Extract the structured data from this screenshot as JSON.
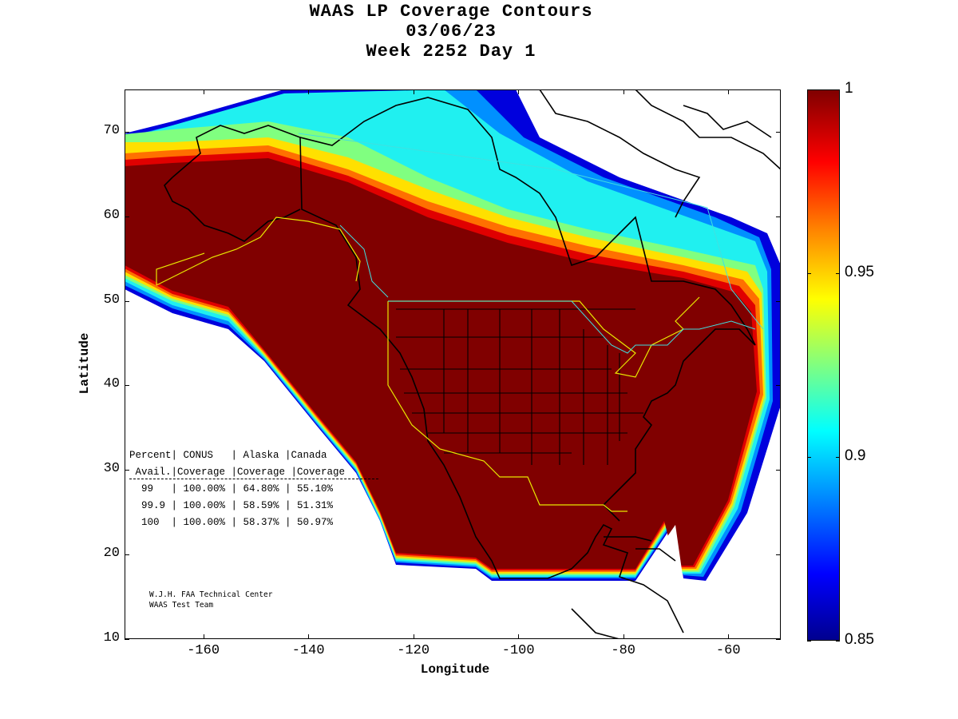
{
  "title": {
    "line1": "WAAS LP Coverage Contours",
    "line2": "03/06/23",
    "line3": "Week 2252 Day 1"
  },
  "axes": {
    "xlabel": "Longitude",
    "ylabel": "Latitude",
    "xlim": [
      -175,
      -50
    ],
    "ylim": [
      10,
      75
    ],
    "xticks": [
      "-160",
      "-140",
      "-120",
      "-100",
      "-80",
      "-60"
    ],
    "xtick_values": [
      -160,
      -140,
      -120,
      -100,
      -80,
      -60
    ],
    "yticks": [
      "10",
      "20",
      "30",
      "40",
      "50",
      "60",
      "70"
    ],
    "ytick_values": [
      10,
      20,
      30,
      40,
      50,
      60,
      70
    ]
  },
  "colorbar": {
    "min": 0.85,
    "max": 1,
    "ticks": [
      "0.85",
      "0.9",
      "0.95",
      "1"
    ],
    "tick_values": [
      0.85,
      0.9,
      0.95,
      1
    ],
    "colors": [
      "#00008f",
      "#0000ff",
      "#0080ff",
      "#00ffff",
      "#80ff80",
      "#ffff00",
      "#ff8000",
      "#ff0000",
      "#800000"
    ]
  },
  "stats": {
    "header1": "Percent| CONUS   | Alaska |Canada",
    "header2": " Avail.|Coverage |Coverage |Coverage",
    "rows": [
      "  99   | 100.00% | 64.80% | 55.10%",
      "  99.9 | 100.00% | 58.59% | 51.31%",
      "  100  | 100.00% | 58.37% | 50.97%"
    ]
  },
  "credit": {
    "line1": "W.J.H. FAA Technical Center",
    "line2": "WAAS Test Team"
  },
  "chart_data": {
    "type": "heatmap",
    "title": "WAAS LP Coverage Contours",
    "xlabel": "Longitude",
    "ylabel": "Latitude",
    "xlim": [
      -175,
      -50
    ],
    "ylim": [
      10,
      75
    ],
    "color_range": [
      0.85,
      1
    ],
    "coverage_table": {
      "columns": [
        "Percent Avail.",
        "CONUS Coverage",
        "Alaska Coverage",
        "Canada Coverage"
      ],
      "rows": [
        [
          "99",
          "100.00%",
          "64.80%",
          "55.10%"
        ],
        [
          "99.9",
          "100.00%",
          "58.59%",
          "51.31%"
        ],
        [
          "100",
          "100.00%",
          "58.37%",
          "50.97%"
        ]
      ]
    }
  }
}
